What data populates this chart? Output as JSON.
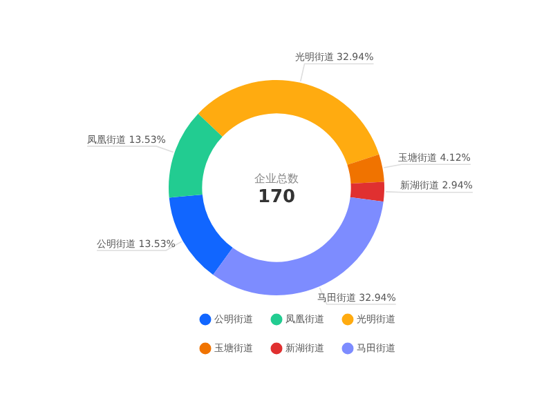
{
  "chart_data": {
    "type": "donut",
    "categories": [
      "公明街道",
      "凤凰街道",
      "光明街道",
      "玉塘街道",
      "新湖街道",
      "马田街道"
    ],
    "values": [
      13.53,
      13.53,
      32.94,
      4.12,
      2.94,
      32.94
    ],
    "value_labels": [
      "13.53%",
      "13.53%",
      "32.94%",
      "4.12%",
      "2.94%",
      "32.94%"
    ],
    "colors": [
      "#1166ff",
      "#22cc91",
      "#ffab10",
      "#f07300",
      "#e03030",
      "#7d8cff"
    ],
    "annotations": [
      "企业总数",
      "170"
    ],
    "legend": "bottom right"
  }
}
